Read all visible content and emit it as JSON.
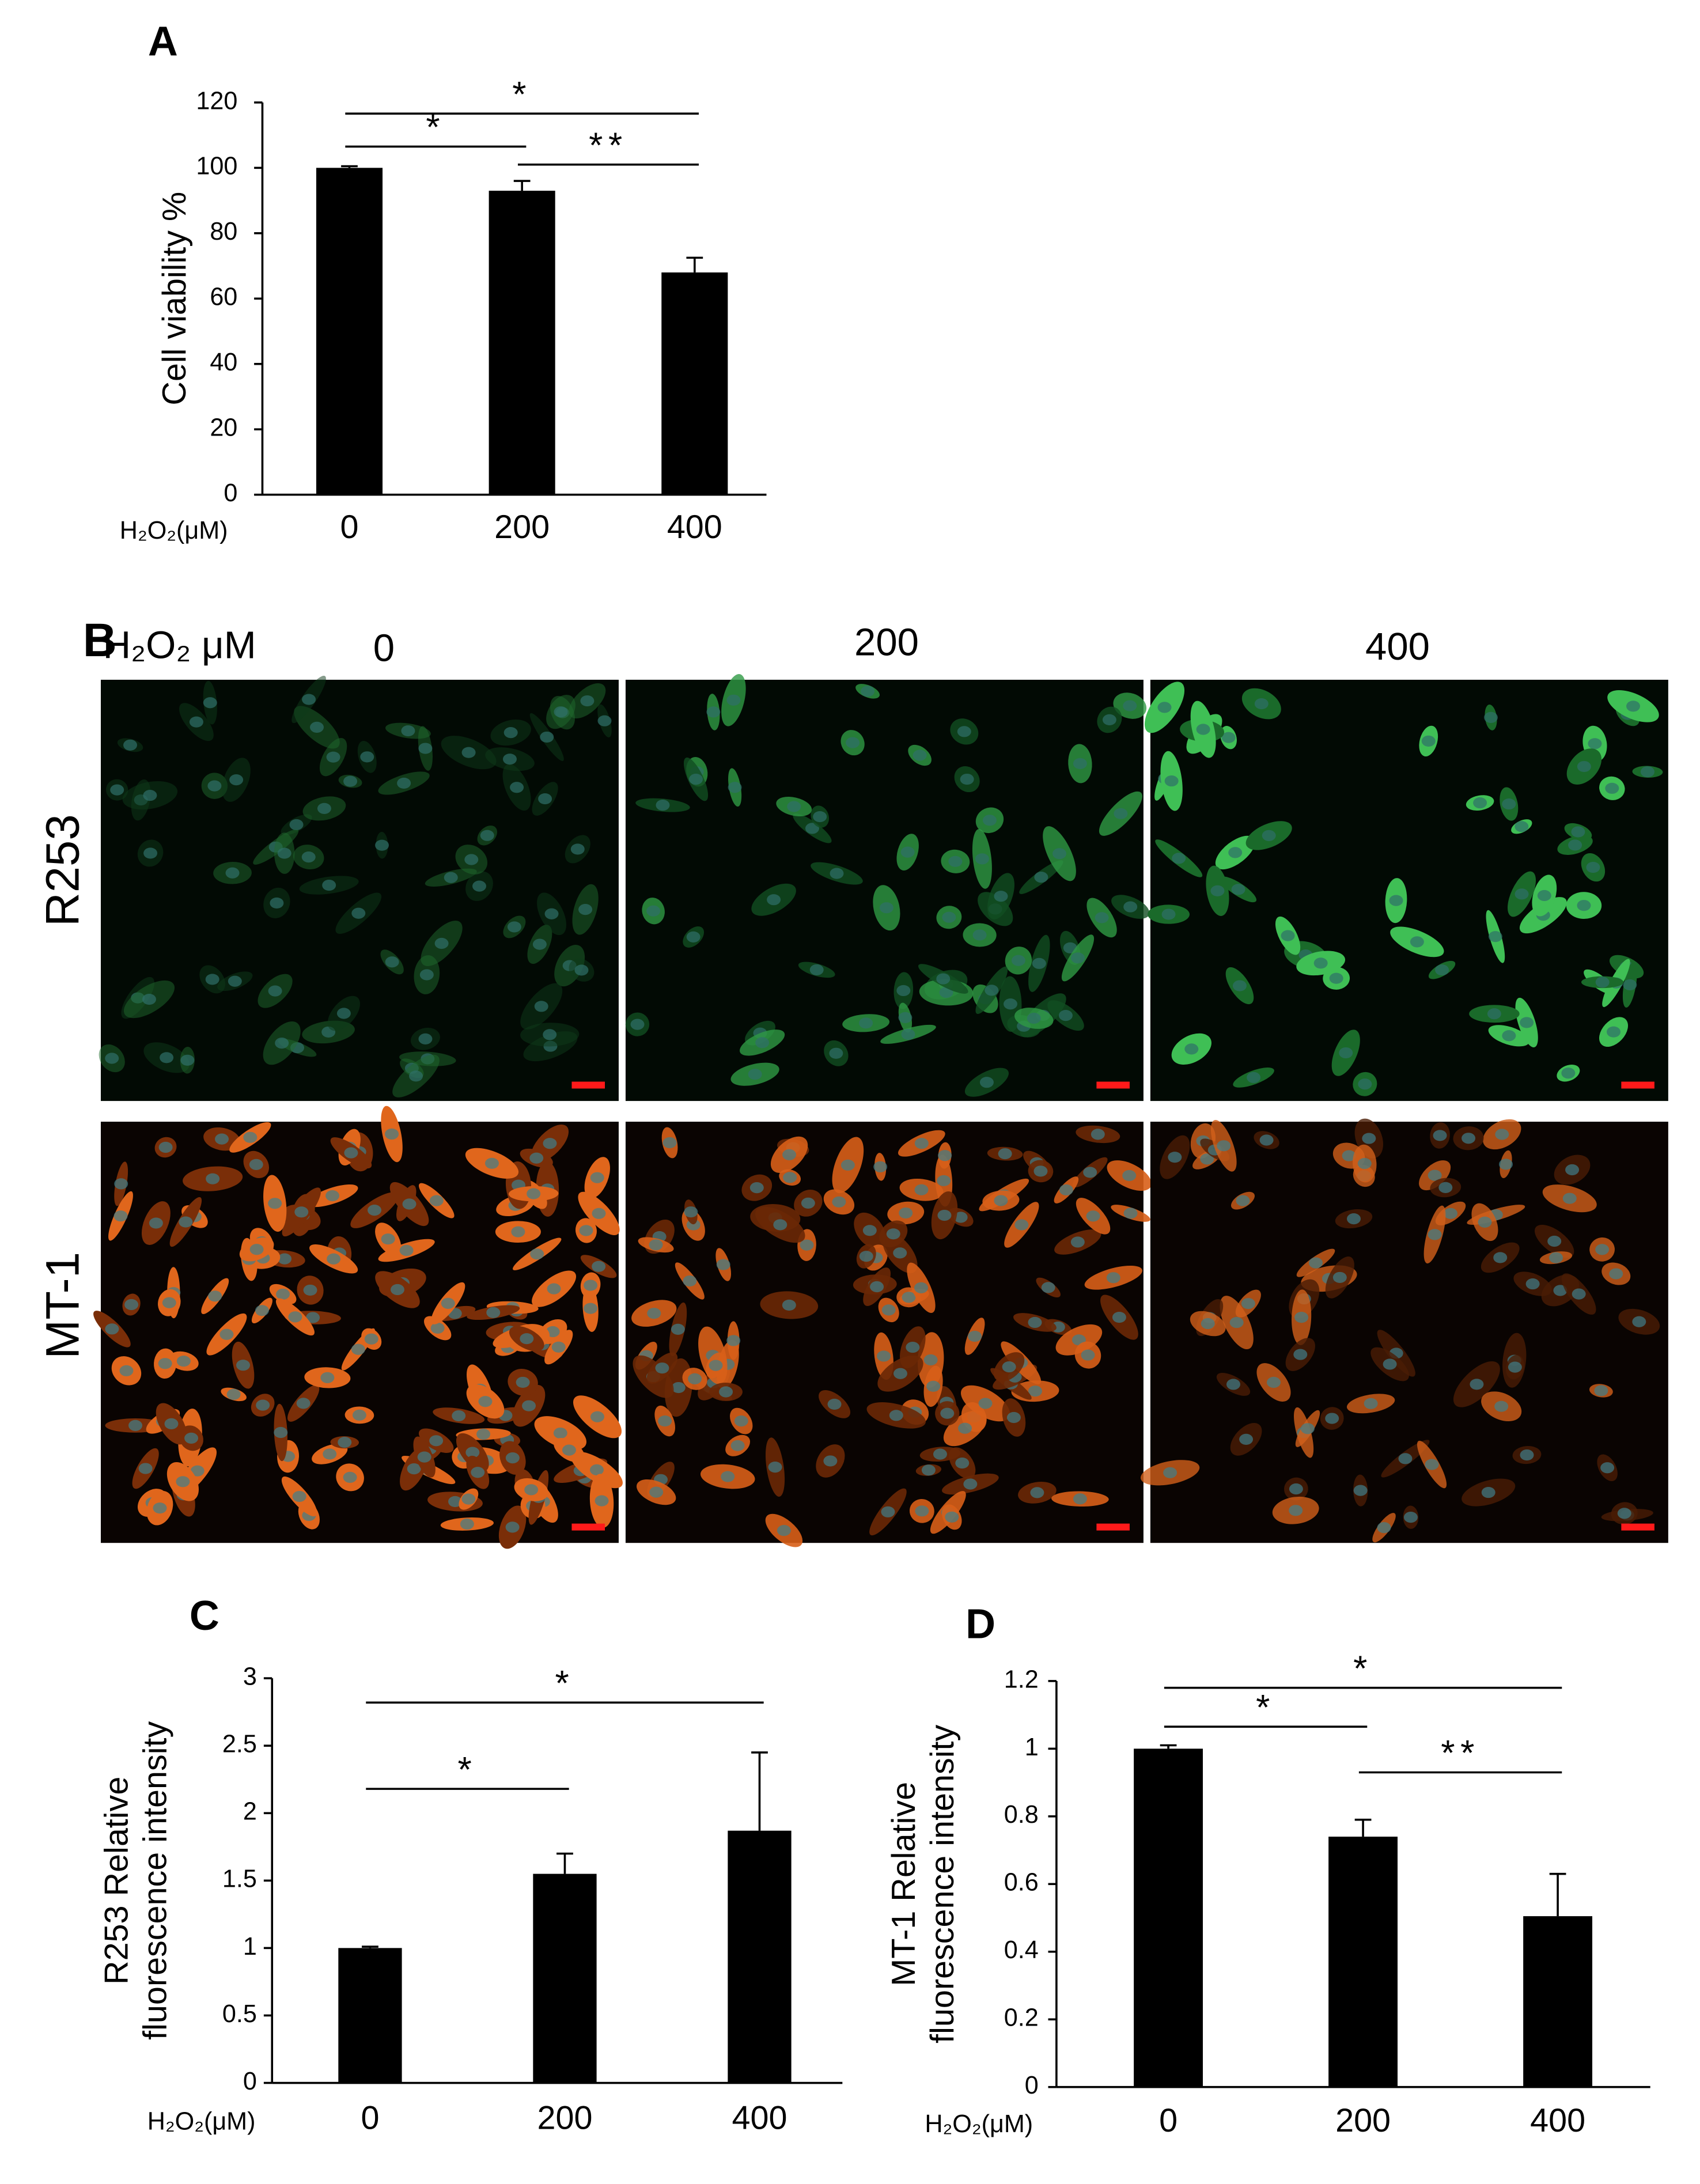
{
  "chart_data": [
    {
      "type": "bar",
      "panel": "A",
      "ylabel": [
        "Cell viability %"
      ],
      "xlabel": "H₂O₂(μM)",
      "categories": [
        "0",
        "200",
        "400"
      ],
      "values": [
        100,
        93,
        68
      ],
      "errors": [
        0.5,
        3,
        4.5
      ],
      "color": "#000000",
      "ylim": [
        0,
        120
      ],
      "yticks": [
        0,
        20,
        40,
        60,
        80,
        100,
        120
      ],
      "annotations": [
        {
          "text": "*",
          "from": 0,
          "to": 2,
          "y": 116.6
        },
        {
          "text": "*",
          "from": 0,
          "to": 1,
          "y": 106.5
        },
        {
          "text": "**",
          "from": 1,
          "to": 2,
          "y": 101
        }
      ]
    },
    {
      "type": "bar",
      "panel": "C",
      "ylabel": [
        "R253 Relative",
        "fluorescence intensity"
      ],
      "xlabel": "H₂O₂(μM)",
      "categories": [
        "0",
        "200",
        "400"
      ],
      "values": [
        1,
        1.55,
        1.87
      ],
      "errors": [
        0.01,
        0.15,
        0.58
      ],
      "color": "#000000",
      "ylim": [
        0,
        3
      ],
      "yticks": [
        0,
        0.5,
        1,
        1.5,
        2,
        2.5,
        3
      ],
      "annotations": [
        {
          "text": "*",
          "from": 0,
          "to": 2,
          "y": 2.82
        },
        {
          "text": "*",
          "from": 0,
          "to": 1,
          "y": 2.18
        }
      ]
    },
    {
      "type": "bar",
      "panel": "D",
      "ylabel": [
        "MT-1 Relative",
        "fluorescence intensity"
      ],
      "xlabel": "H₂O₂(μM)",
      "categories": [
        "0",
        "200",
        "400"
      ],
      "values": [
        1,
        0.74,
        0.505
      ],
      "errors": [
        0.01,
        0.05,
        0.125
      ],
      "color": "#000000",
      "ylim": [
        0,
        1.2
      ],
      "yticks": [
        0,
        0.2,
        0.4,
        0.6,
        0.8,
        1,
        1.2
      ],
      "annotations": [
        {
          "text": "*",
          "from": 0,
          "to": 2,
          "y": 1.18
        },
        {
          "text": "*",
          "from": 0,
          "to": 1,
          "y": 1.065
        },
        {
          "text": "**",
          "from": 1,
          "to": 2,
          "y": 0.93
        }
      ]
    }
  ],
  "panel_b": {
    "label": "B",
    "treatment": "H₂O₂ μM",
    "columns": [
      "0",
      "200",
      "400"
    ],
    "rows": [
      "R253",
      "MT-1"
    ]
  }
}
